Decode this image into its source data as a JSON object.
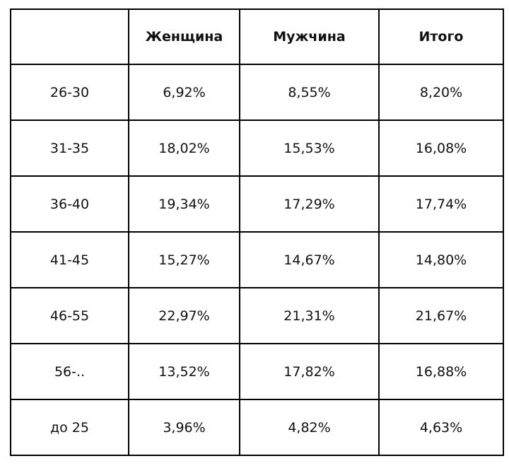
{
  "table": {
    "header": [
      "Женщина",
      "Мужчина",
      "Итого"
    ],
    "rows": [
      [
        "26-30",
        "6,92%",
        "8,55%",
        "8,20%"
      ],
      [
        "31-35",
        "18,02%",
        "15,53%",
        "16,08%"
      ],
      [
        "36-40",
        "19,34%",
        "17,29%",
        "17,74%"
      ],
      [
        "41-45",
        "15,27%",
        "14,67%",
        "14,80%"
      ],
      [
        "46-55",
        "22,97%",
        "21,31%",
        "21,67%"
      ],
      [
        "56-..",
        "13,52%",
        "17,82%",
        "16,88%"
      ],
      [
        "до 25",
        "3,96%",
        "4,82%",
        "4,63%"
      ]
    ]
  }
}
